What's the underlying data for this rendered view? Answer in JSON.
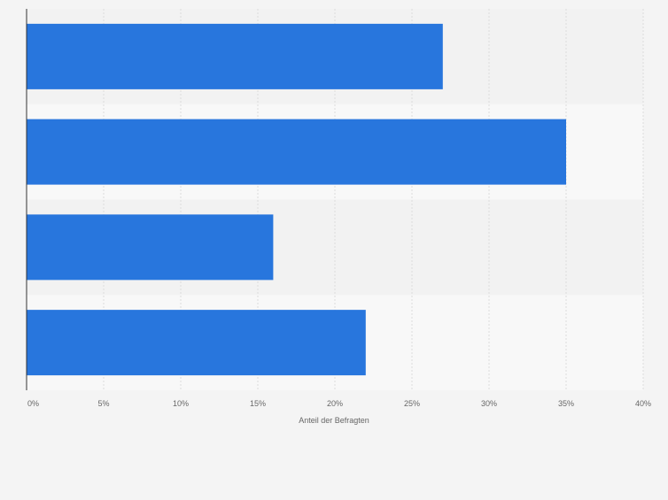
{
  "chart_data": {
    "type": "bar",
    "orientation": "horizontal",
    "categories": [
      "",
      "",
      "",
      ""
    ],
    "values": [
      27,
      35,
      16,
      22
    ],
    "xlabel": "Anteil der Befragten",
    "ylabel": "",
    "xlim": [
      0,
      40
    ],
    "ticks": [
      "0%",
      "5%",
      "10%",
      "15%",
      "20%",
      "25%",
      "30%",
      "35%",
      "40%"
    ],
    "grid": true,
    "bar_color": "#2876dd",
    "band_colors": [
      "#f2f2f2",
      "#f8f8f8"
    ]
  }
}
